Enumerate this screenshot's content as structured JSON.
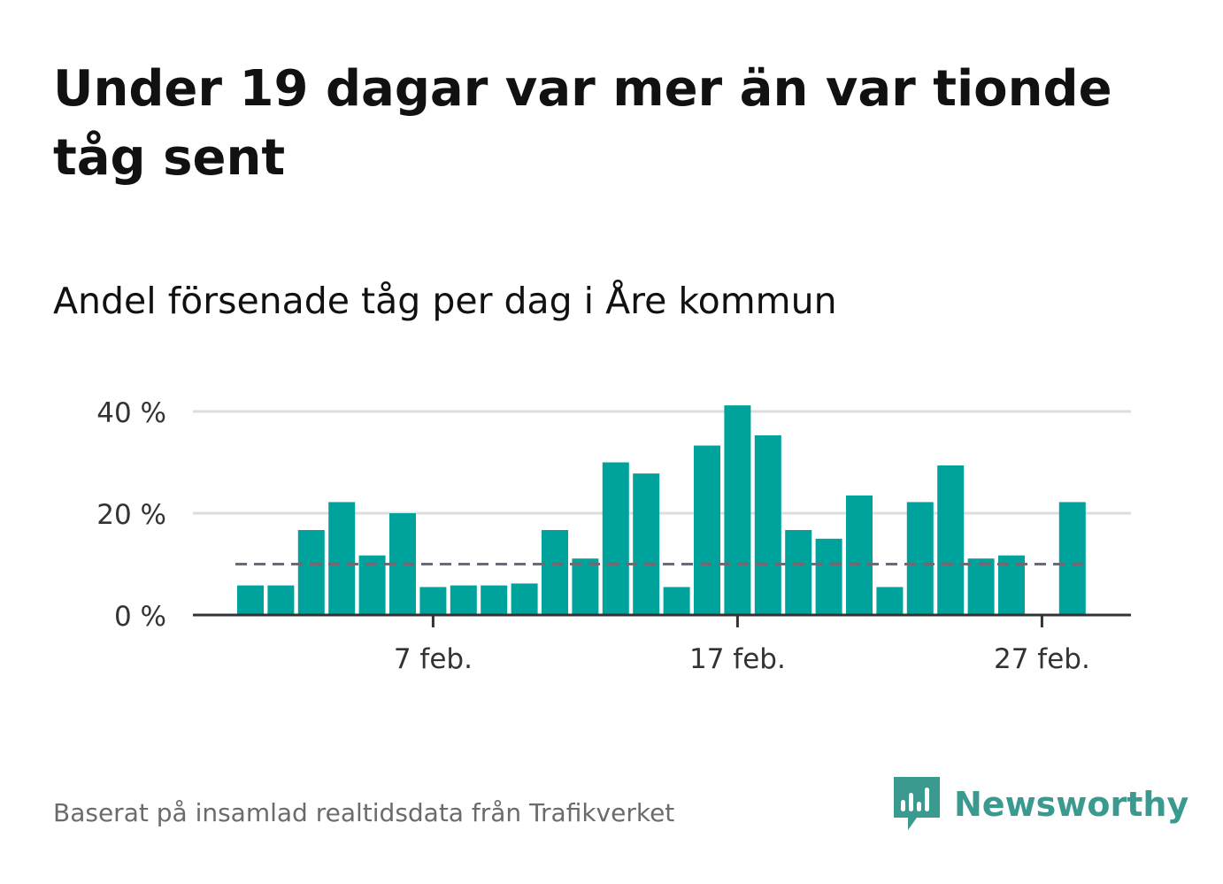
{
  "title": "Under 19 dagar var mer än var tionde tåg sent",
  "subtitle": "Andel försenade tåg per dag i Åre kommun",
  "source": "Baserat på insamlad realtidsdata från Trafikverket",
  "brand": {
    "name": "Newsworthy",
    "icon": "newsworthy-logo-icon",
    "color": "#3b9a90"
  },
  "colors": {
    "bar": "#00a39b",
    "grid": "#dddddd",
    "axis": "#333333",
    "reference": "#6b6b75",
    "text": "#333333"
  },
  "chart_data": {
    "type": "bar",
    "x": [
      "2024-02-01",
      "2024-02-02",
      "2024-02-03",
      "2024-02-04",
      "2024-02-05",
      "2024-02-06",
      "2024-02-07",
      "2024-02-08",
      "2024-02-09",
      "2024-02-10",
      "2024-02-11",
      "2024-02-12",
      "2024-02-13",
      "2024-02-14",
      "2024-02-15",
      "2024-02-16",
      "2024-02-17",
      "2024-02-18",
      "2024-02-19",
      "2024-02-20",
      "2024-02-21",
      "2024-02-22",
      "2024-02-23",
      "2024-02-24",
      "2024-02-25",
      "2024-02-26",
      "2024-02-27",
      "2024-02-28"
    ],
    "values": [
      5.8,
      5.8,
      16.7,
      22.2,
      11.7,
      20.0,
      5.5,
      5.8,
      5.8,
      6.2,
      16.7,
      11.1,
      30.0,
      27.8,
      5.5,
      33.3,
      41.2,
      35.3,
      16.7,
      15.0,
      23.5,
      5.5,
      22.2,
      29.4,
      11.1,
      11.7,
      0,
      22.2
    ],
    "ylim": [
      0,
      40
    ],
    "yticks": [
      0,
      20,
      40
    ],
    "ytick_labels": [
      "0 %",
      "20 %",
      "40 %"
    ],
    "xticks": [
      "2024-02-07",
      "2024-02-17",
      "2024-02-27"
    ],
    "xtick_labels": [
      "7 feb.",
      "17 feb.",
      "27 feb."
    ],
    "reference_line": 10,
    "grid": true,
    "legend": "none"
  }
}
